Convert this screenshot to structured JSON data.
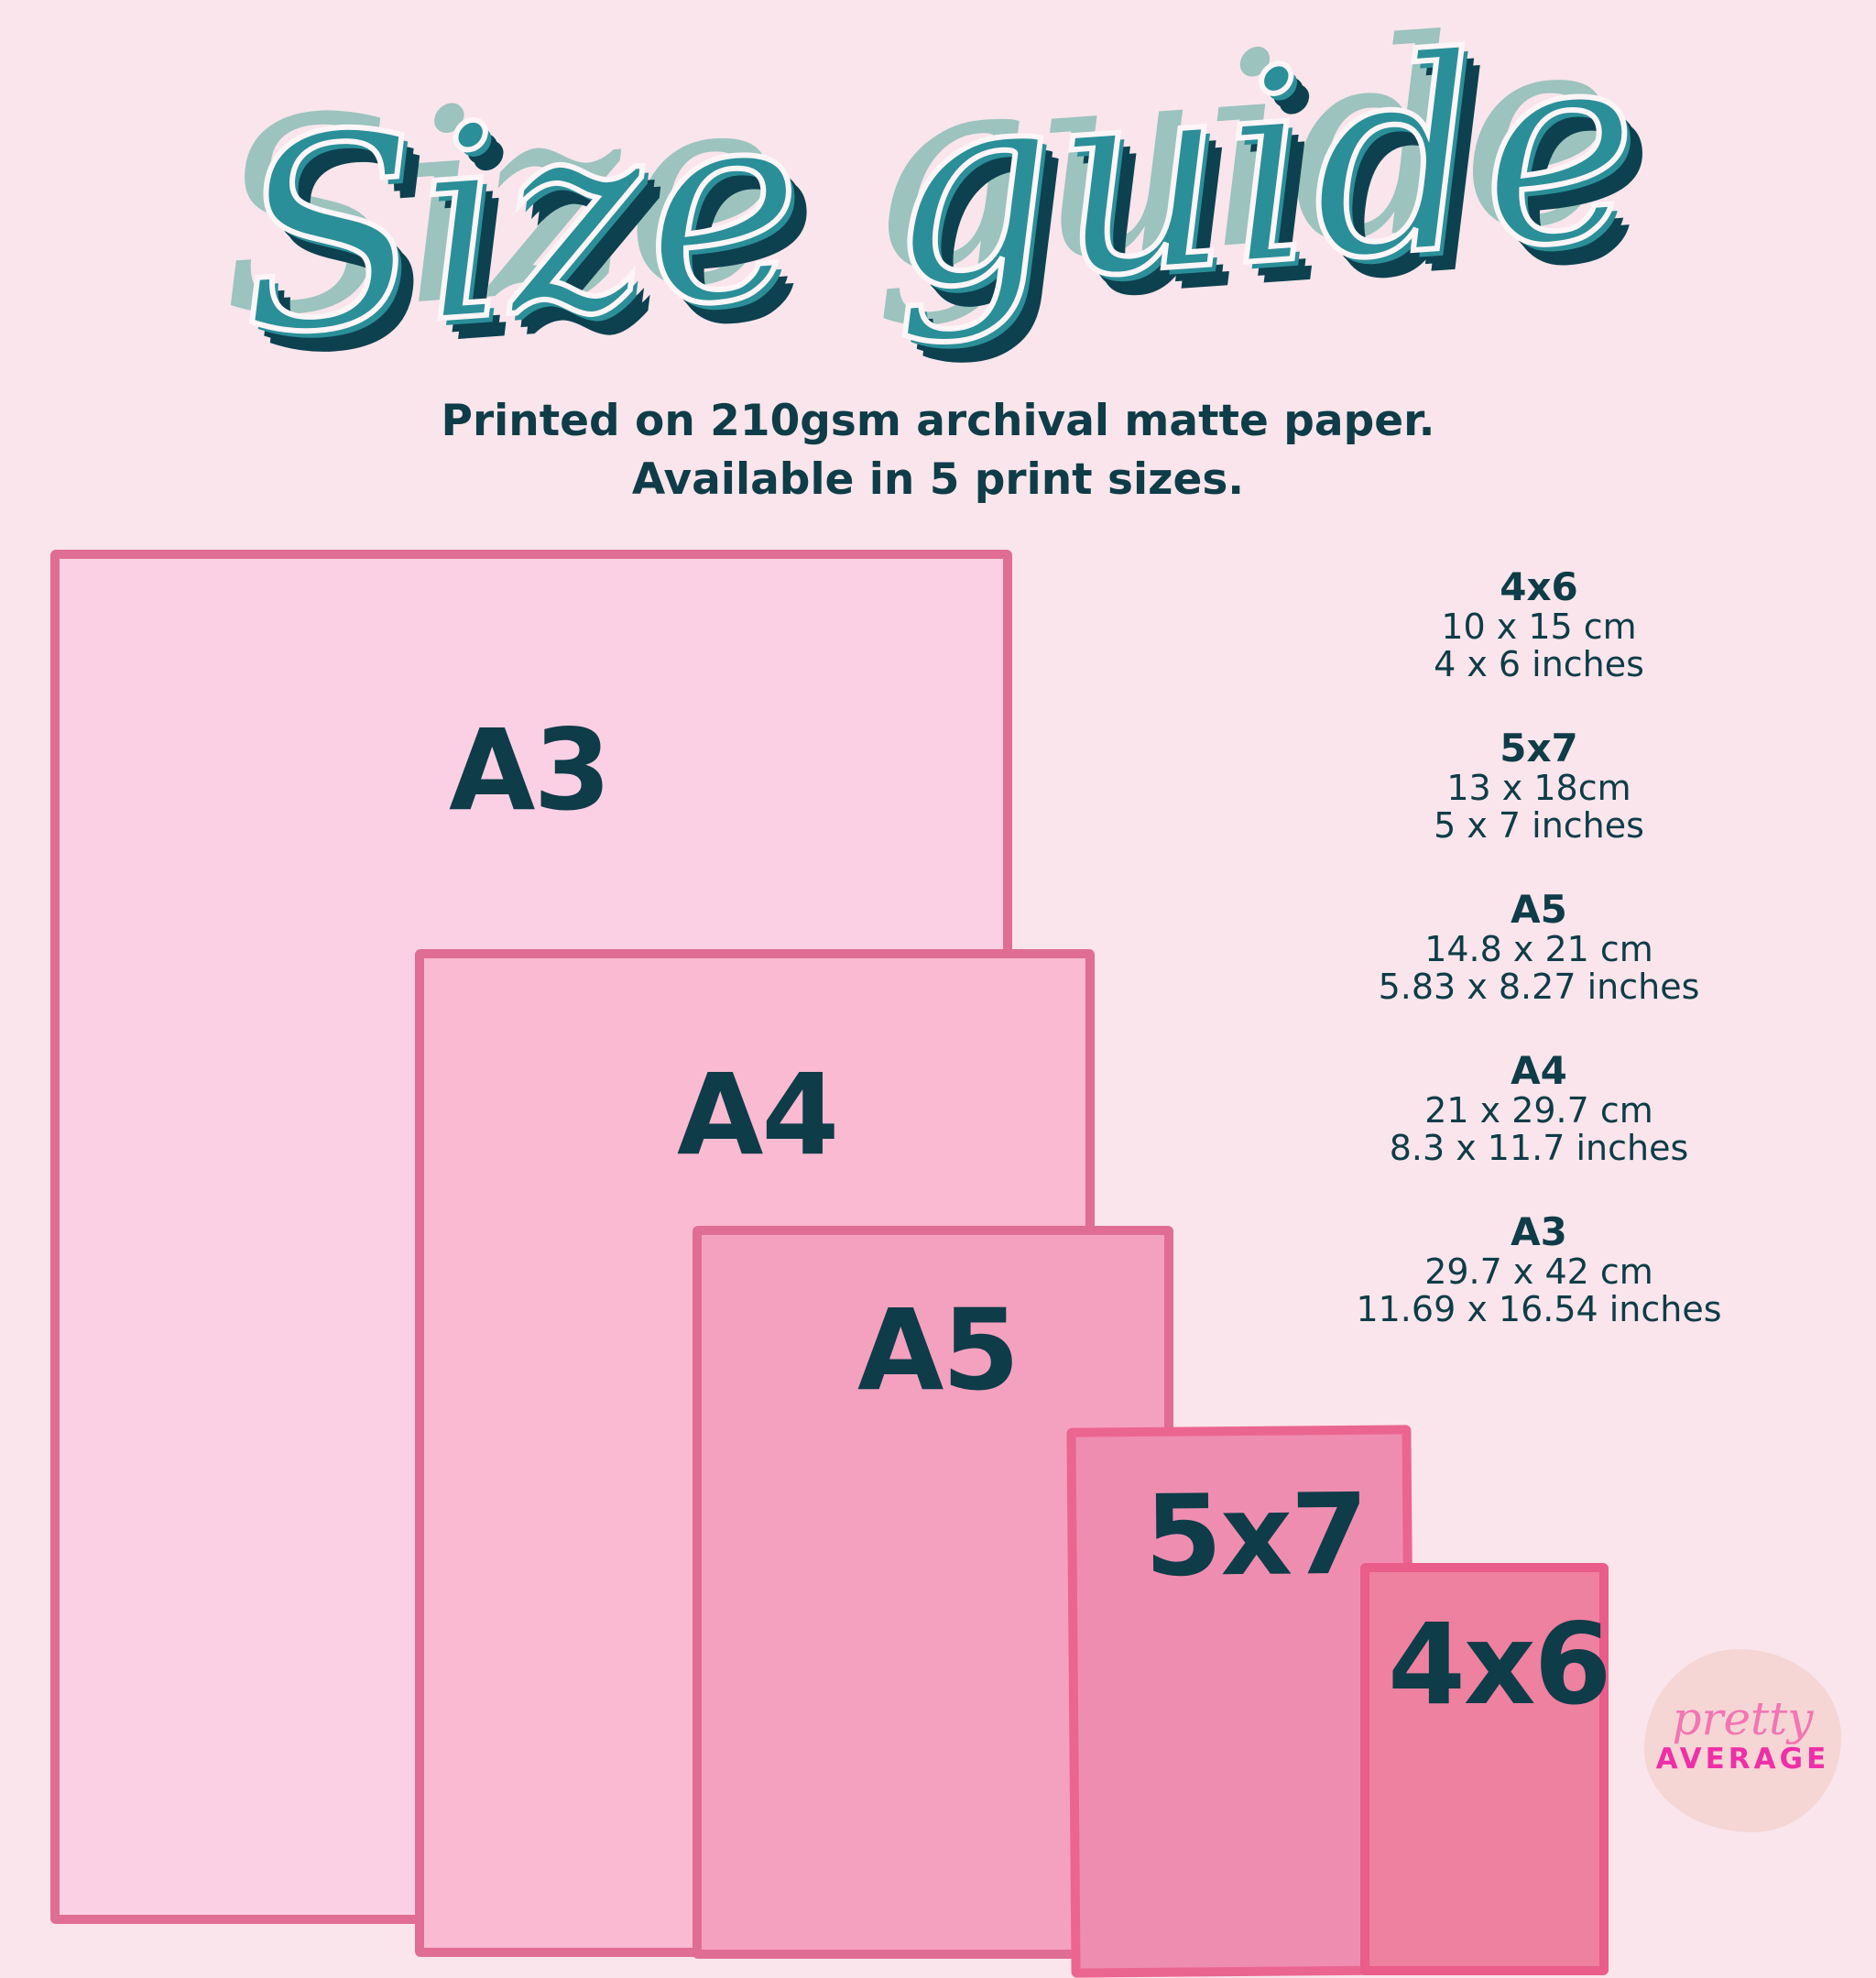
{
  "title": "Size guide",
  "subtitle": {
    "line1": "Printed on 210gsm archival matte paper.",
    "line2": "Available in 5 print sizes."
  },
  "sheets": [
    {
      "label": "A3",
      "fill": "#fbd0e5",
      "border": "#e06d93"
    },
    {
      "label": "A4",
      "fill": "#f9bad2",
      "border": "#e06d93"
    },
    {
      "label": "A5",
      "fill": "#f4a1bf",
      "border": "#e06d93"
    },
    {
      "label": "5x7",
      "fill": "#ef8db1",
      "border": "#eb6591"
    },
    {
      "label": "4x6",
      "fill": "#ee80a0",
      "border": "#ea5c89"
    }
  ],
  "specs": [
    {
      "name": "4x6",
      "metric": "10 x 15 cm",
      "imperial": "4 x 6 inches"
    },
    {
      "name": "5x7",
      "metric": "13 x 18cm",
      "imperial": "5 x 7 inches"
    },
    {
      "name": "A5",
      "metric": "14.8 x 21 cm",
      "imperial": "5.83 x 8.27 inches"
    },
    {
      "name": "A4",
      "metric": "21 x 29.7 cm",
      "imperial": "8.3 x 11.7 inches"
    },
    {
      "name": "A3",
      "metric": "29.7 x 42 cm",
      "imperial": "11.69 x 16.54 inches"
    }
  ],
  "logo": {
    "script": "pretty",
    "caps": "AVERAGE"
  }
}
